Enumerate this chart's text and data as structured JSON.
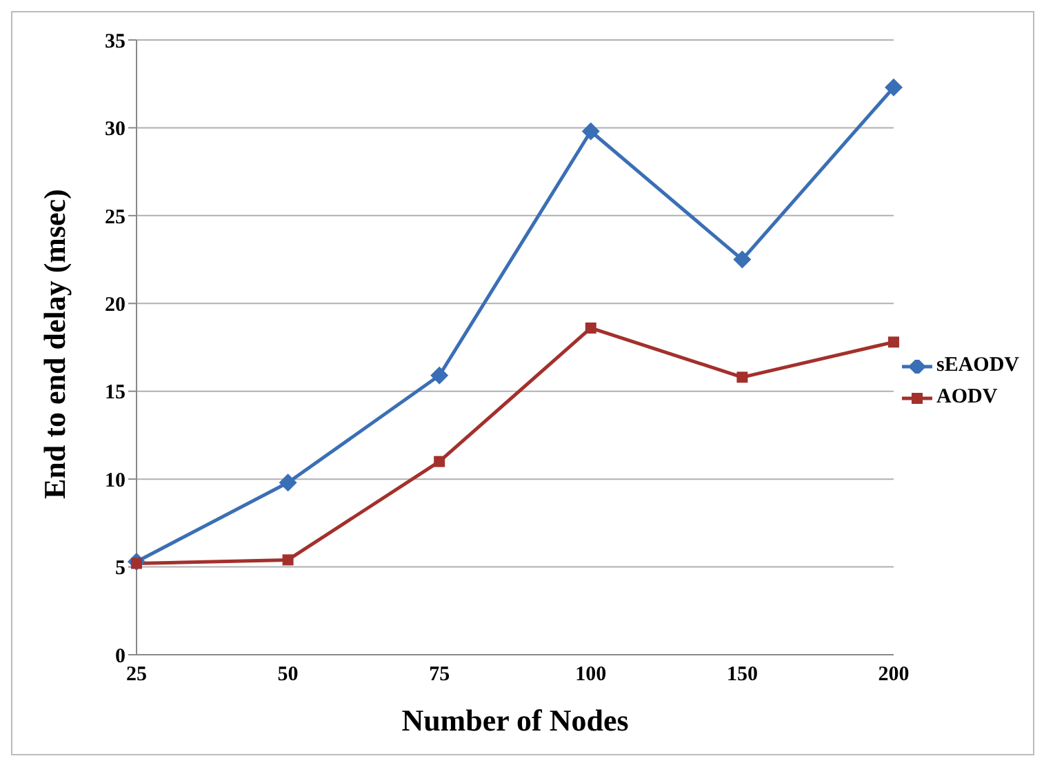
{
  "chart_data": {
    "type": "line",
    "xlabel": "Number of Nodes",
    "ylabel": "End to end delay (msec)",
    "categories": [
      "25",
      "50",
      "75",
      "100",
      "150",
      "200"
    ],
    "series": [
      {
        "name": "sEAODV",
        "color": "#3a6fb5",
        "marker": "diamond",
        "values": [
          5.3,
          9.8,
          15.9,
          29.8,
          22.5,
          32.3
        ]
      },
      {
        "name": "AODV",
        "color": "#a3302c",
        "marker": "square",
        "values": [
          5.2,
          5.4,
          11.0,
          18.6,
          15.8,
          17.8
        ]
      }
    ],
    "ylim": [
      0,
      35
    ],
    "yticks": [
      0,
      5,
      10,
      15,
      20,
      25,
      30,
      35
    ],
    "grid": "y",
    "legend": "right",
    "line_style": "solid"
  }
}
